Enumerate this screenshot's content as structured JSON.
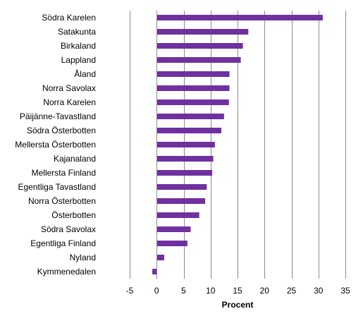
{
  "chart_data": {
    "type": "bar",
    "orientation": "horizontal",
    "categories": [
      "Södra Karelen",
      "Satakunta",
      "Birkaland",
      "Lappland",
      "Åland",
      "Norra Savolax",
      "Norra Karelen",
      "Päijänne-Tavastland",
      "Södra Österbotten",
      "Mellersta Österbotten",
      "Kajanaland",
      "Mellersta Finland",
      "Egentliga Tavastland",
      "Norra Österbotten",
      "Österbotten",
      "Södra Savolax",
      "Egentliga Finland",
      "Nyland",
      "Kymmenedalen"
    ],
    "values": [
      30.8,
      17.0,
      16.0,
      15.6,
      13.5,
      13.5,
      13.4,
      12.5,
      12.0,
      10.8,
      10.5,
      10.3,
      9.3,
      9.0,
      7.9,
      6.3,
      5.7,
      1.4,
      -0.8
    ],
    "title": "",
    "xlabel": "Procent",
    "ylabel": "",
    "xlim": [
      -5,
      35
    ],
    "xticks": [
      "-5",
      "0",
      "5",
      "10",
      "15",
      "20",
      "25",
      "30",
      "35"
    ],
    "grid": "vertical",
    "legend": "none",
    "bar_color": "#7030a0"
  }
}
